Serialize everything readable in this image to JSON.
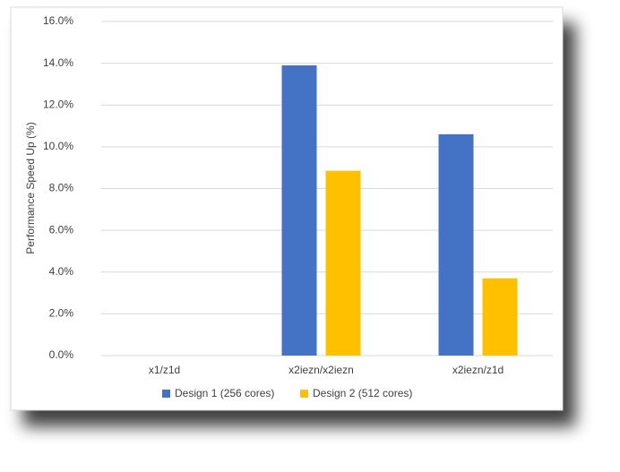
{
  "chart_data": {
    "type": "bar",
    "y_label": "Performance Speed Up (%)",
    "categories": [
      "x1/z1d",
      "x2iezn/x2iezn",
      "x2iezn/z1d"
    ],
    "series": [
      {
        "name": "Design 1 (256 cores)",
        "color": "#4472c4",
        "values": [
          0,
          13.9,
          10.6
        ]
      },
      {
        "name": "Design 2 (512 cores)",
        "color": "#ffc000",
        "values": [
          0,
          8.85,
          3.7
        ]
      }
    ],
    "ylim": [
      0,
      16
    ],
    "yticks": [
      {
        "value": 0,
        "label": "0.0%"
      },
      {
        "value": 2,
        "label": "2.0%"
      },
      {
        "value": 4,
        "label": "4.0%"
      },
      {
        "value": 6,
        "label": "6.0%"
      },
      {
        "value": 8,
        "label": "8.0%"
      },
      {
        "value": 10,
        "label": "10.0%"
      },
      {
        "value": 12,
        "label": "12.0%"
      },
      {
        "value": 14,
        "label": "14.0%"
      },
      {
        "value": 16,
        "label": "16.0%"
      }
    ],
    "grid": true,
    "legend": "bottom"
  }
}
